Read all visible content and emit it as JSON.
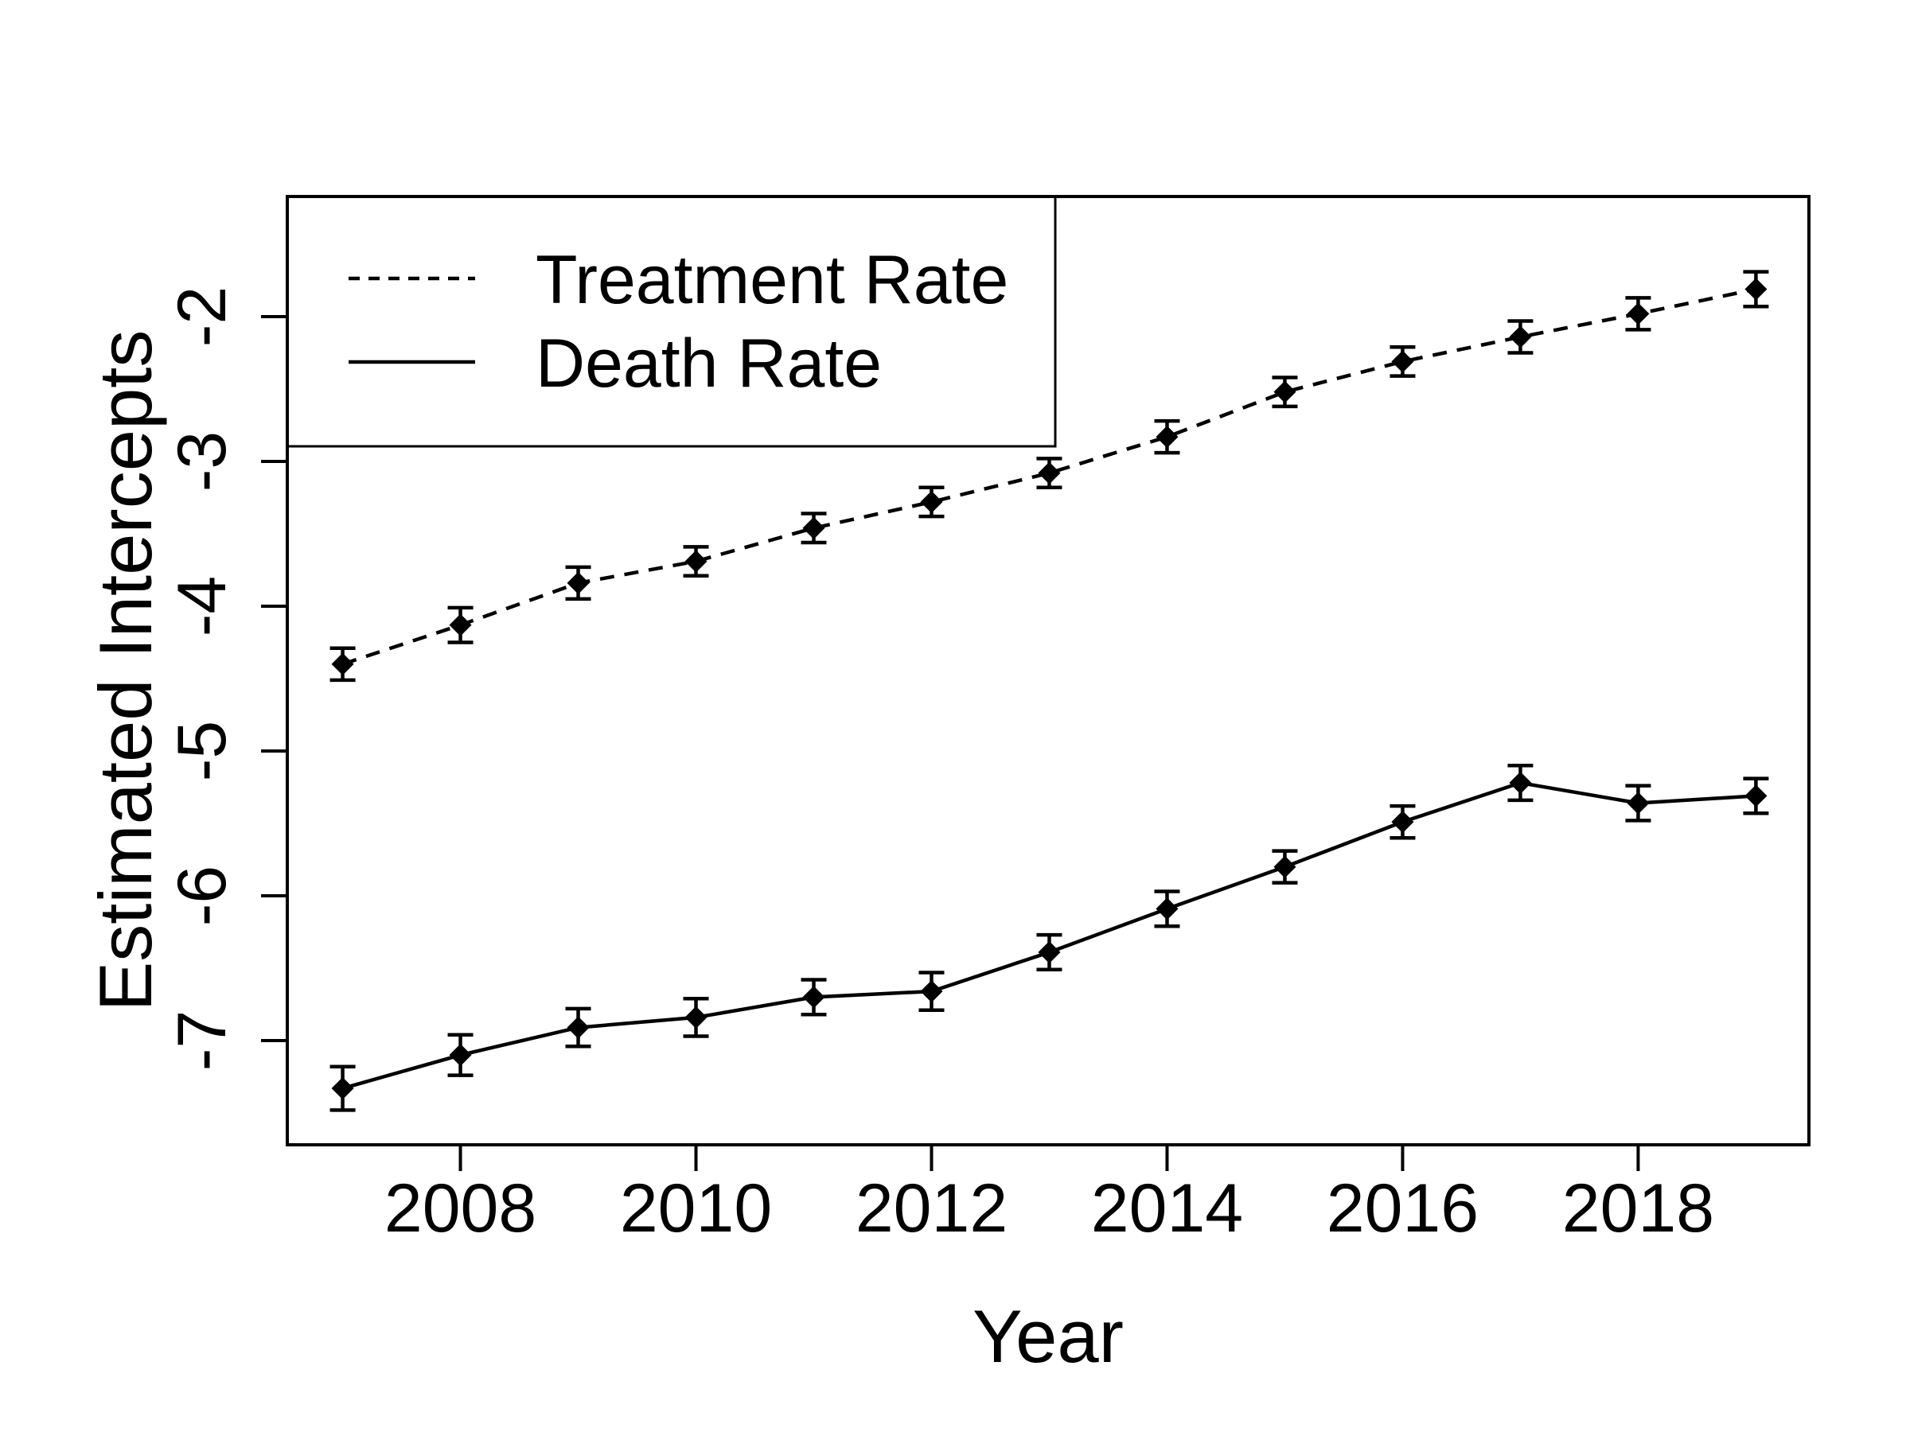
{
  "figure": {
    "background_color": "#ffffff",
    "foreground_color": "#000000"
  },
  "chart_data": {
    "type": "line",
    "title": "",
    "xlabel": "Year",
    "ylabel": "Estimated Intercepts",
    "x": [
      2007,
      2008,
      2009,
      2010,
      2011,
      2012,
      2013,
      2014,
      2015,
      2016,
      2017,
      2018,
      2019
    ],
    "series": [
      {
        "name": "Treatment Rate",
        "linestyle": "dashed",
        "color": "#000000",
        "marker": "filled-diamond",
        "values": [
          -4.4,
          -4.13,
          -3.84,
          -3.69,
          -3.46,
          -3.28,
          -3.08,
          -2.83,
          -2.52,
          -2.31,
          -2.14,
          -1.98,
          -1.81
        ],
        "errors": [
          0.11,
          0.12,
          0.11,
          0.1,
          0.1,
          0.1,
          0.1,
          0.11,
          0.1,
          0.1,
          0.11,
          0.11,
          0.12
        ]
      },
      {
        "name": "Death Rate",
        "linestyle": "solid",
        "color": "#000000",
        "marker": "filled-diamond",
        "values": [
          -7.33,
          -7.1,
          -6.91,
          -6.84,
          -6.7,
          -6.66,
          -6.39,
          -6.09,
          -5.8,
          -5.49,
          -5.22,
          -5.36,
          -5.31
        ],
        "errors": [
          0.15,
          0.14,
          0.13,
          0.13,
          0.12,
          0.13,
          0.12,
          0.12,
          0.11,
          0.11,
          0.12,
          0.12,
          0.12
        ]
      }
    ],
    "xticks": [
      2008,
      2010,
      2012,
      2014,
      2016,
      2018
    ],
    "yticks": [
      -2,
      -3,
      -4,
      -5,
      -6,
      -7
    ],
    "xlim": [
      2006.53,
      2019.45
    ],
    "ylim": [
      -7.72,
      -1.17
    ],
    "grid": false,
    "error_bars": true,
    "legend_position": "top-left",
    "y_tick_label_rotation": 90
  }
}
